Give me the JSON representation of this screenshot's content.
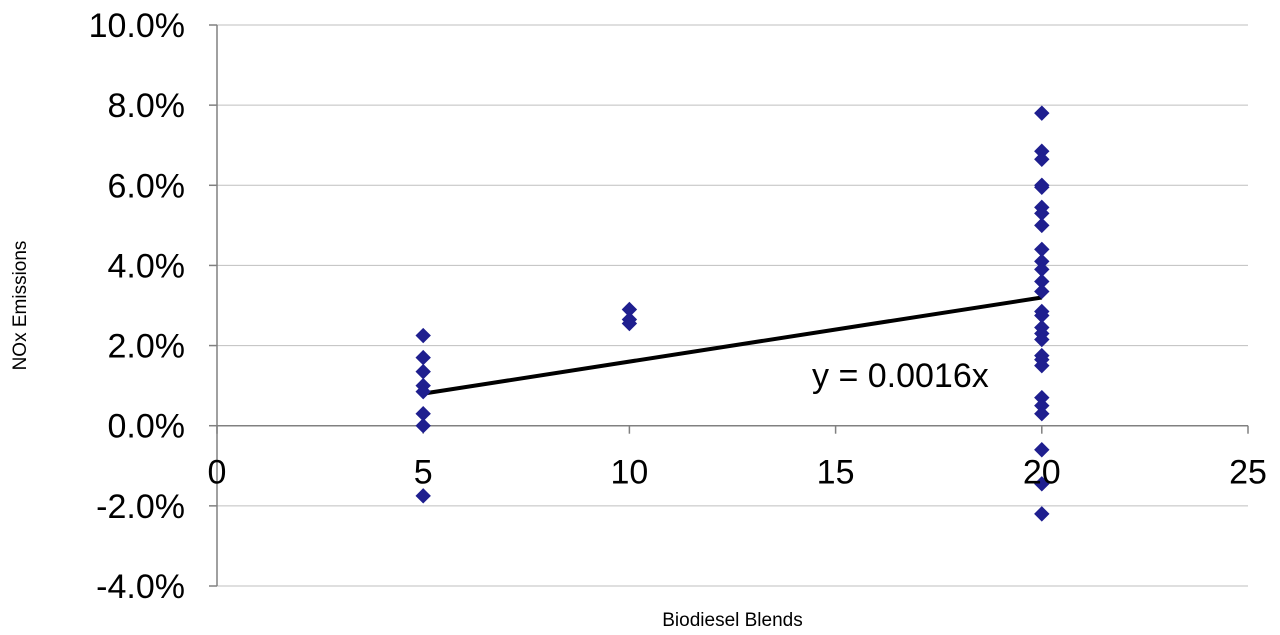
{
  "chart_data": {
    "type": "scatter",
    "title": "",
    "xlabel": "Biodiesel Blends",
    "ylabel": "NOx Emissions",
    "xlim": [
      0,
      25
    ],
    "ylim": [
      -4.0,
      10.0
    ],
    "x_ticks": [
      0,
      5,
      10,
      15,
      20,
      25
    ],
    "x_tick_labels": [
      "0",
      "5",
      "10",
      "15",
      "20",
      "25"
    ],
    "y_ticks": [
      -4.0,
      -2.0,
      0.0,
      2.0,
      4.0,
      6.0,
      8.0,
      10.0
    ],
    "y_tick_labels": [
      "-4.0%",
      "-2.0%",
      "0.0%",
      "2.0%",
      "4.0%",
      "6.0%",
      "8.0%",
      "10.0%"
    ],
    "y_unit": "percent",
    "grid": "horizontal",
    "legend": "none",
    "colors": {
      "marker": "#1F1F8F",
      "trendline": "#000000",
      "gridline": "#BFBFBF",
      "axis": "#808080"
    },
    "series": [
      {
        "marker": "diamond",
        "points": [
          {
            "x": 5,
            "y": 2.25
          },
          {
            "x": 5,
            "y": 1.7
          },
          {
            "x": 5,
            "y": 1.35
          },
          {
            "x": 5,
            "y": 1.0
          },
          {
            "x": 5,
            "y": 0.85
          },
          {
            "x": 5,
            "y": 0.3
          },
          {
            "x": 5,
            "y": 0.0
          },
          {
            "x": 5,
            "y": -1.75
          },
          {
            "x": 10,
            "y": 2.9
          },
          {
            "x": 10,
            "y": 2.65
          },
          {
            "x": 10,
            "y": 2.55
          },
          {
            "x": 20,
            "y": 7.8
          },
          {
            "x": 20,
            "y": 6.85
          },
          {
            "x": 20,
            "y": 6.65
          },
          {
            "x": 20,
            "y": 6.0
          },
          {
            "x": 20,
            "y": 5.95
          },
          {
            "x": 20,
            "y": 5.45
          },
          {
            "x": 20,
            "y": 5.3
          },
          {
            "x": 20,
            "y": 5.0
          },
          {
            "x": 20,
            "y": 4.4
          },
          {
            "x": 20,
            "y": 4.1
          },
          {
            "x": 20,
            "y": 3.9
          },
          {
            "x": 20,
            "y": 3.6
          },
          {
            "x": 20,
            "y": 3.35
          },
          {
            "x": 20,
            "y": 2.85
          },
          {
            "x": 20,
            "y": 2.75
          },
          {
            "x": 20,
            "y": 2.45
          },
          {
            "x": 20,
            "y": 2.3
          },
          {
            "x": 20,
            "y": 2.15
          },
          {
            "x": 20,
            "y": 1.75
          },
          {
            "x": 20,
            "y": 1.65
          },
          {
            "x": 20,
            "y": 1.5
          },
          {
            "x": 20,
            "y": 0.7
          },
          {
            "x": 20,
            "y": 0.5
          },
          {
            "x": 20,
            "y": 0.3
          },
          {
            "x": 20,
            "y": -0.6
          },
          {
            "x": 20,
            "y": -1.45
          },
          {
            "x": 20,
            "y": -2.2
          }
        ]
      }
    ],
    "trendline": {
      "label": "y = 0.0016x",
      "slope_percent_per_unit": 0.16,
      "intercept": 0,
      "x_range": [
        5,
        20
      ]
    }
  }
}
